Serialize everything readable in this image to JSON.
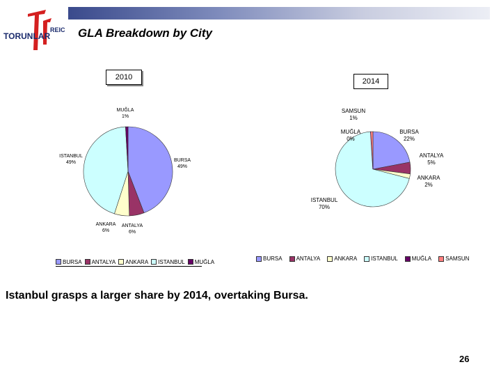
{
  "header": {
    "logo_text": "TORUNLAR",
    "logo_sub": "REIC",
    "title": "GLA Breakdown by City"
  },
  "colors": {
    "bursa": "#9999ff",
    "antalya": "#993366",
    "ankara": "#ffffcc",
    "istanbul": "#ccffff",
    "mugla": "#660066",
    "samsun": "#ff8080"
  },
  "chart_data": [
    {
      "type": "pie",
      "title": "2010",
      "categories": [
        "BURSA",
        "ANTALYA",
        "ANKARA",
        "ISTANBUL",
        "MUĞLA"
      ],
      "values": [
        49,
        6,
        6,
        49,
        1
      ],
      "labels": [
        "BURSA\n49%",
        "ANTALYA\n6%",
        "ANKARA\n6%",
        "ISTANBUL\n49%",
        "MUĞLA\n1%"
      ],
      "legend": [
        "BURSA",
        "ANTALYA",
        "ANKARA",
        "ISTANBUL",
        "MUĞLA"
      ]
    },
    {
      "type": "pie",
      "title": "2014",
      "categories": [
        "BURSA",
        "ANTALYA",
        "ANKARA",
        "ISTANBUL",
        "MUĞLA",
        "SAMSUN"
      ],
      "values": [
        22,
        5,
        2,
        70,
        0,
        1
      ],
      "labels": [
        "BURSA\n22%",
        "ANTALYA\n5%",
        "ANKARA\n2%",
        "ISTANBUL\n70%",
        "MUĞLA\n0%",
        "SAMSUN\n1%"
      ],
      "legend": [
        "BURSA",
        "ANTALYA",
        "ANKARA",
        "ISTANBUL",
        "MUĞLA",
        "SAMSUN"
      ]
    }
  ],
  "caption": "Istanbul grasps a larger share by 2014, overtaking Bursa.",
  "page_number": "26"
}
